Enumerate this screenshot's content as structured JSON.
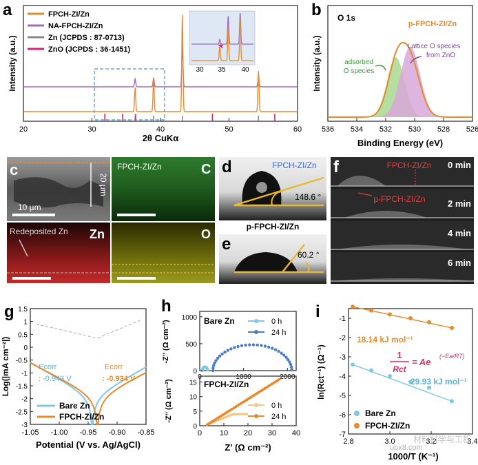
{
  "colors": {
    "orange": "#e8892c",
    "purple": "#9b6bc0",
    "gray": "#888888",
    "magenta": "#d4237a",
    "cyan": "#7cc8e6",
    "blue": "#4a7cc8",
    "green": "#a8d890",
    "pink": "#d8a8d8",
    "inset_bg": "#dde8f4",
    "box_dash": "#4a90d0",
    "teal_text": "#3a88c8"
  },
  "panels": {
    "a": "a",
    "b": "b",
    "c": "c",
    "d": "d",
    "e": "e",
    "f": "f",
    "g": "g",
    "h": "h",
    "i": "i"
  },
  "chart_data": [
    {
      "id": "a",
      "type": "line",
      "xlabel": "2θ CuKα",
      "ylabel": "Intensity (a.u.)",
      "xlim": [
        20,
        60
      ],
      "xticks": [
        "20",
        "30",
        "40",
        "50",
        "60"
      ],
      "legend": [
        {
          "name": "FPCH-ZI/Zn",
          "color": "#e8892c",
          "kind": "line"
        },
        {
          "name": "NA-FPCH-ZI/Zn",
          "color": "#9b6bc0",
          "kind": "line"
        },
        {
          "name": "Zn (JCPDS : 87-0713)",
          "color": "#888888",
          "kind": "bar"
        },
        {
          "name": "ZnO (JCPDS : 36-1451)",
          "color": "#d4237a",
          "kind": "bar"
        }
      ],
      "peaks_fpch": [
        [
          36.3,
          0.25
        ],
        [
          39.0,
          0.35
        ],
        [
          43.2,
          1.0
        ],
        [
          54.3,
          0.42
        ]
      ],
      "peaks_na": [
        [
          36.3,
          0.12
        ],
        [
          39.0,
          0.14
        ],
        [
          43.2,
          0.65
        ],
        [
          54.3,
          0.16
        ]
      ],
      "zn_refs": [
        36.3,
        39.0,
        43.2,
        54.3
      ],
      "zno_refs": [
        31.8,
        34.4,
        36.3,
        47.5,
        56.6
      ],
      "inset": {
        "xticks": [
          "30",
          "35",
          "40"
        ],
        "marker": "*"
      }
    },
    {
      "id": "b",
      "type": "area",
      "title": "O 1s",
      "xlabel": "Binding Energy (eV)",
      "ylabel": "Intensity (a.u.)",
      "xlim": [
        536,
        526
      ],
      "xticks": [
        "536",
        "534",
        "532",
        "530",
        "528",
        "526"
      ],
      "series_label": "p-FPCH-ZI/Zn",
      "components": [
        {
          "name": "adsorbed O species",
          "center": 531.3,
          "height": 0.62
        },
        {
          "name": "Lattice O species from ZnO",
          "center": 530.3,
          "height": 0.73
        }
      ],
      "annotation_lines": [
        "adsorbed",
        "O species",
        "Lattice O species",
        "from ZnO"
      ]
    },
    {
      "id": "g",
      "type": "line",
      "xlabel": "Potential (V vs. Ag/AgCl)",
      "ylabel": "Log(|mA cm⁻²|)",
      "xlim": [
        -1.05,
        -0.85
      ],
      "ylim": [
        -3,
        1.5
      ],
      "xticks": [
        "-1.05",
        "-1.00",
        "-0.95",
        "-0.90",
        "-0.85"
      ],
      "yticks": [
        "1.5",
        "1",
        "0.5",
        "0",
        "-0.5",
        "-1",
        "-1.5",
        "-2",
        "-2.5",
        "-3"
      ],
      "series": [
        {
          "name": "Bare Zn",
          "ecorr": -0.943,
          "ecorr_label": "Ecorr",
          "ecorr_value": ": -0.943 V"
        },
        {
          "name": "FPCH-ZI/Zn",
          "ecorr": -0.934,
          "ecorr_label": "Ecorr",
          "ecorr_value": ": -0.934 V"
        }
      ]
    },
    {
      "id": "h_top",
      "type": "scatter",
      "title": "Bare Zn",
      "ylabel": "-Z'' (Ω cm⁻²)",
      "xlim": [
        0,
        2200
      ],
      "ylim": [
        0,
        1100
      ],
      "xticks": [
        "0",
        "1000",
        "2000"
      ],
      "yticks": [
        "0",
        "500",
        "1000"
      ],
      "series": [
        {
          "name": "0 h"
        },
        {
          "name": "24 h"
        }
      ]
    },
    {
      "id": "h_bottom",
      "type": "scatter",
      "title": "FPCH-ZI/Zn",
      "xlabel": "Z' (Ω cm⁻²)",
      "ylabel": "-Z'' (Ω cm⁻²)",
      "xlim": [
        0,
        40
      ],
      "ylim": [
        0,
        17
      ],
      "xticks": [
        "0",
        "10",
        "20",
        "30",
        "40"
      ],
      "yticks": [
        "0",
        "5",
        "10",
        "15"
      ],
      "series": [
        {
          "name": "0 h"
        },
        {
          "name": "24 h"
        }
      ]
    },
    {
      "id": "i",
      "type": "scatter",
      "xlabel": "1000/T (K⁻¹)",
      "ylabel": "ln(Rct⁻¹) (Ω⁻¹)",
      "xlim": [
        2.8,
        3.4
      ],
      "ylim": [
        -7,
        -0.5
      ],
      "xticks": [
        "2.8",
        "3.0",
        "3.2",
        "3.4"
      ],
      "yticks": [
        "-1",
        "-2",
        "-3",
        "-4",
        "-5",
        "-6",
        "-7"
      ],
      "series": [
        {
          "name": "Bare Zn",
          "x": [
            2.82,
            2.91,
            3.0,
            3.1,
            3.19,
            3.3
          ],
          "y": [
            -3.4,
            -3.7,
            -4.0,
            -4.3,
            -4.6,
            -5.3
          ],
          "fit_label": "29.93 kJ mol⁻¹"
        },
        {
          "name": "FPCH-ZI/Zn",
          "x": [
            2.82,
            2.91,
            3.0,
            3.1,
            3.19,
            3.3
          ],
          "y": [
            -0.4,
            -0.6,
            -0.8,
            -1.0,
            -1.2,
            -1.5
          ],
          "fit_label": "18.14 kJ mol⁻¹"
        }
      ],
      "equation": {
        "lhs": "1",
        "den": "Rct",
        "rhs": "= Ae",
        "exp": "(−Ea/RT)"
      }
    }
  ],
  "images": {
    "c": {
      "scale": "10 µm",
      "depth": "20 µm",
      "title_tr": "FPCH-ZI/Zn",
      "elem_c": "C",
      "elem_zn": "Zn",
      "elem_o": "O",
      "redeposit": "Redeposited Zn"
    },
    "d": {
      "label": "FPCH-ZI/Zn",
      "angle": "148.6 °"
    },
    "e": {
      "label": "p-FPCH-ZI/Zn",
      "angle": "60.2 °"
    },
    "f": {
      "label1": "FPCH-ZI/Zn",
      "label2": "p-FPCH-ZI/Zn",
      "times": [
        "0 min",
        "2 min",
        "4 min",
        "6 min"
      ]
    }
  },
  "watermark": {
    "text": "ubx8.com",
    "cn": "材料科学与工程"
  }
}
